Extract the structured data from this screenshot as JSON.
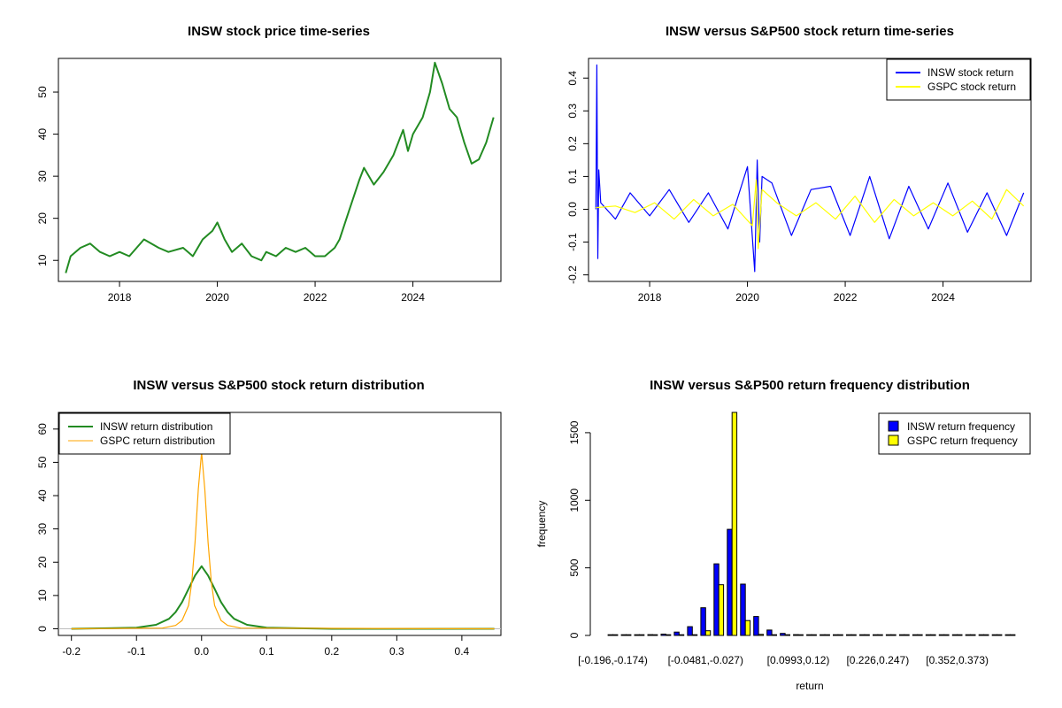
{
  "chart_data": [
    {
      "type": "line",
      "title": "INSW stock price time-series",
      "xlim": [
        2016.75,
        2025.8
      ],
      "ylim": [
        5,
        58
      ],
      "x_ticks": [
        "2018",
        "2020",
        "2022",
        "2024"
      ],
      "x_tick_values": [
        2018,
        2020,
        2022,
        2024
      ],
      "y_ticks": [
        "10",
        "20",
        "30",
        "40",
        "50"
      ],
      "y_tick_values": [
        10,
        20,
        30,
        40,
        50
      ],
      "series": [
        {
          "color": "#228b22",
          "x": [
            2016.9,
            2017.0,
            2017.2,
            2017.4,
            2017.6,
            2017.8,
            2018.0,
            2018.2,
            2018.5,
            2018.8,
            2019.0,
            2019.3,
            2019.5,
            2019.7,
            2019.9,
            2020.0,
            2020.15,
            2020.3,
            2020.5,
            2020.7,
            2020.9,
            2021.0,
            2021.2,
            2021.4,
            2021.6,
            2021.8,
            2022.0,
            2022.2,
            2022.4,
            2022.5,
            2022.7,
            2022.9,
            2023.0,
            2023.2,
            2023.4,
            2023.6,
            2023.8,
            2023.9,
            2024.0,
            2024.2,
            2024.35,
            2024.45,
            2024.6,
            2024.75,
            2024.9,
            2025.05,
            2025.2,
            2025.35,
            2025.5,
            2025.65
          ],
          "y": [
            7,
            11,
            13,
            14,
            12,
            11,
            12,
            11,
            15,
            13,
            12,
            13,
            11,
            15,
            17,
            19,
            15,
            12,
            14,
            11,
            10,
            12,
            11,
            13,
            12,
            13,
            11,
            11,
            13,
            15,
            22,
            29,
            32,
            28,
            31,
            35,
            41,
            36,
            40,
            44,
            50,
            57,
            52,
            46,
            44,
            38,
            33,
            34,
            38,
            44
          ]
        }
      ]
    },
    {
      "type": "line",
      "title": "INSW versus S&P500 stock return time-series",
      "xlim": [
        2016.75,
        2025.8
      ],
      "ylim": [
        -0.22,
        0.46
      ],
      "x_ticks": [
        "2018",
        "2020",
        "2022",
        "2024"
      ],
      "x_tick_values": [
        2018,
        2020,
        2022,
        2024
      ],
      "y_ticks": [
        "-0.2",
        "-0.1",
        "0.0",
        "0.1",
        "0.2",
        "0.3",
        "0.4"
      ],
      "y_tick_values": [
        -0.2,
        -0.1,
        0.0,
        0.1,
        0.2,
        0.3,
        0.4
      ],
      "legend_position": "top-right",
      "legend": [
        "INSW stock return",
        "GSPC stock return"
      ],
      "series": [
        {
          "name": "INSW stock return",
          "color": "#0000ff",
          "x": [
            2016.9,
            2016.92,
            2016.94,
            2016.96,
            2017.0,
            2017.3,
            2017.6,
            2018.0,
            2018.4,
            2018.8,
            2019.2,
            2019.6,
            2020.0,
            2020.15,
            2020.2,
            2020.25,
            2020.3,
            2020.5,
            2020.9,
            2021.3,
            2021.7,
            2022.1,
            2022.5,
            2022.9,
            2023.3,
            2023.7,
            2024.1,
            2024.5,
            2024.9,
            2025.3,
            2025.65
          ],
          "y": [
            0.0,
            0.44,
            -0.15,
            0.12,
            0.02,
            -0.03,
            0.05,
            -0.02,
            0.06,
            -0.04,
            0.05,
            -0.06,
            0.13,
            -0.19,
            0.15,
            -0.1,
            0.1,
            0.08,
            -0.08,
            0.06,
            0.07,
            -0.08,
            0.1,
            -0.09,
            0.07,
            -0.06,
            0.08,
            -0.07,
            0.05,
            -0.08,
            0.05
          ]
        },
        {
          "name": "GSPC stock return",
          "color": "#ffff00",
          "x": [
            2016.9,
            2017.3,
            2017.7,
            2018.1,
            2018.5,
            2018.9,
            2019.3,
            2019.7,
            2020.1,
            2020.18,
            2020.22,
            2020.3,
            2020.6,
            2021.0,
            2021.4,
            2021.8,
            2022.2,
            2022.6,
            2023.0,
            2023.4,
            2023.8,
            2024.2,
            2024.6,
            2025.0,
            2025.3,
            2025.65
          ],
          "y": [
            0.005,
            0.01,
            -0.01,
            0.02,
            -0.03,
            0.03,
            -0.02,
            0.015,
            -0.05,
            0.09,
            -0.12,
            0.06,
            0.02,
            -0.02,
            0.02,
            -0.03,
            0.04,
            -0.04,
            0.03,
            -0.02,
            0.02,
            -0.02,
            0.025,
            -0.03,
            0.06,
            0.01
          ]
        }
      ]
    },
    {
      "type": "line",
      "title": "INSW versus S&P500 stock return distribution",
      "xlim": [
        -0.22,
        0.46
      ],
      "ylim": [
        -2,
        65
      ],
      "x_ticks": [
        "-0.2",
        "-0.1",
        "0.0",
        "0.1",
        "0.2",
        "0.3",
        "0.4"
      ],
      "x_tick_values": [
        -0.2,
        -0.1,
        0.0,
        0.1,
        0.2,
        0.3,
        0.4
      ],
      "y_ticks": [
        "0",
        "10",
        "20",
        "30",
        "40",
        "50",
        "60"
      ],
      "y_tick_values": [
        0,
        10,
        20,
        30,
        40,
        50,
        60
      ],
      "legend_position": "top-left",
      "legend": [
        "INSW return distribution",
        "GSPC return distribution"
      ],
      "series": [
        {
          "name": "INSW return distribution",
          "color": "#228b22",
          "x": [
            -0.2,
            -0.1,
            -0.07,
            -0.05,
            -0.04,
            -0.03,
            -0.02,
            -0.01,
            0.0,
            0.01,
            0.02,
            0.03,
            0.04,
            0.05,
            0.07,
            0.1,
            0.2,
            0.3,
            0.45
          ],
          "y": [
            0,
            0.3,
            1.2,
            3,
            5,
            8,
            12,
            16,
            18.8,
            16,
            12,
            8,
            5,
            3,
            1.2,
            0.3,
            0,
            0,
            0
          ]
        },
        {
          "name": "GSPC return distribution",
          "color": "#ffa500",
          "x": [
            -0.2,
            -0.06,
            -0.04,
            -0.03,
            -0.02,
            -0.015,
            -0.01,
            -0.005,
            0.0,
            0.005,
            0.01,
            0.015,
            0.02,
            0.03,
            0.04,
            0.06,
            0.45
          ],
          "y": [
            0,
            0.2,
            1,
            2.5,
            7,
            14,
            26,
            42,
            53,
            42,
            26,
            14,
            7,
            2.5,
            1,
            0.2,
            0
          ]
        }
      ]
    },
    {
      "type": "bar",
      "title": "INSW versus S&P500 return frequency distribution",
      "xlabel": "return",
      "ylabel": "frequency",
      "ylim": [
        0,
        1650
      ],
      "y_ticks": [
        "0",
        "500",
        "1000",
        "1500"
      ],
      "y_tick_values": [
        0,
        500,
        1000,
        1500
      ],
      "category_labels_shown": [
        "[-0.196,-0.174)",
        "[-0.0481,-0.027)",
        "[0.0993,0.12)",
        "[0.226,0.247)",
        "[0.352,0.373)"
      ],
      "category_label_index": [
        0,
        7,
        14,
        20,
        26
      ],
      "legend_position": "top-right",
      "legend": [
        "INSW return frequency",
        "GSPC return frequency"
      ],
      "series": [
        {
          "name": "INSW return frequency",
          "color": "#0000ff",
          "values": [
            5,
            3,
            4,
            6,
            10,
            25,
            65,
            205,
            530,
            785,
            380,
            140,
            40,
            15,
            6,
            3,
            2,
            1,
            1,
            0,
            0,
            0,
            0,
            0,
            0,
            0,
            0,
            0,
            1,
            0,
            0
          ]
        },
        {
          "name": "GSPC return frequency",
          "color": "#ffff00",
          "values": [
            0,
            0,
            0,
            0,
            0,
            1,
            3,
            35,
            375,
            1680,
            110,
            8,
            1,
            0,
            0,
            0,
            0,
            0,
            0,
            0,
            0,
            0,
            0,
            0,
            0,
            0,
            0,
            0,
            0,
            0,
            0
          ]
        }
      ]
    }
  ]
}
